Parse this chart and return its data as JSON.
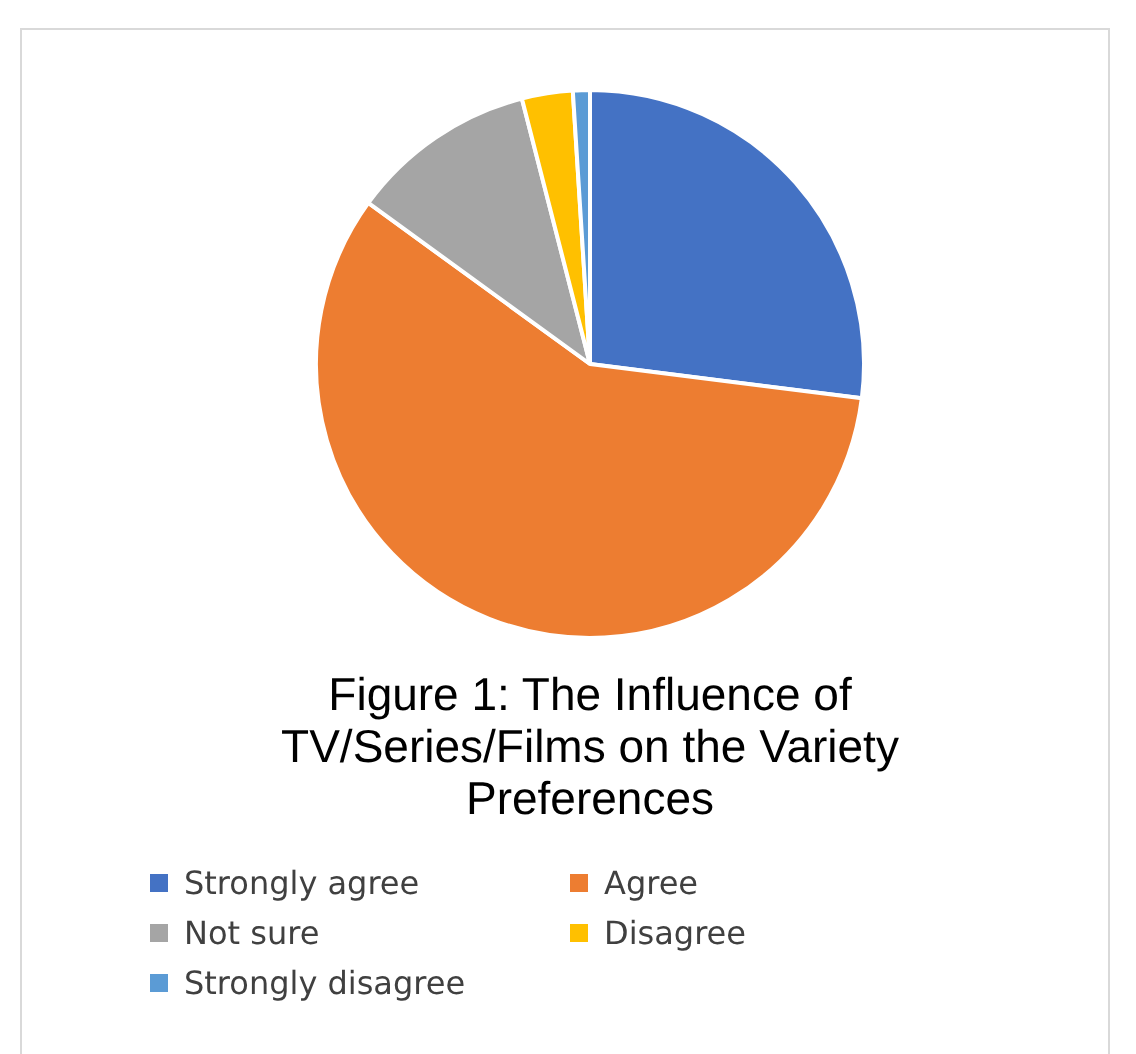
{
  "chart_data": {
    "type": "pie",
    "title": "Figure 1: The Influence of TV/Series/Films on the Variety Preferences",
    "categories": [
      "Strongly agree",
      "Agree",
      "Not sure",
      "Disagree",
      "Strongly disagree"
    ],
    "values": [
      27,
      58,
      11,
      3,
      1
    ],
    "colors": [
      "#4472c4",
      "#ed7d31",
      "#a5a5a5",
      "#ffc000",
      "#5b9bd5"
    ],
    "legend": "bottom"
  }
}
